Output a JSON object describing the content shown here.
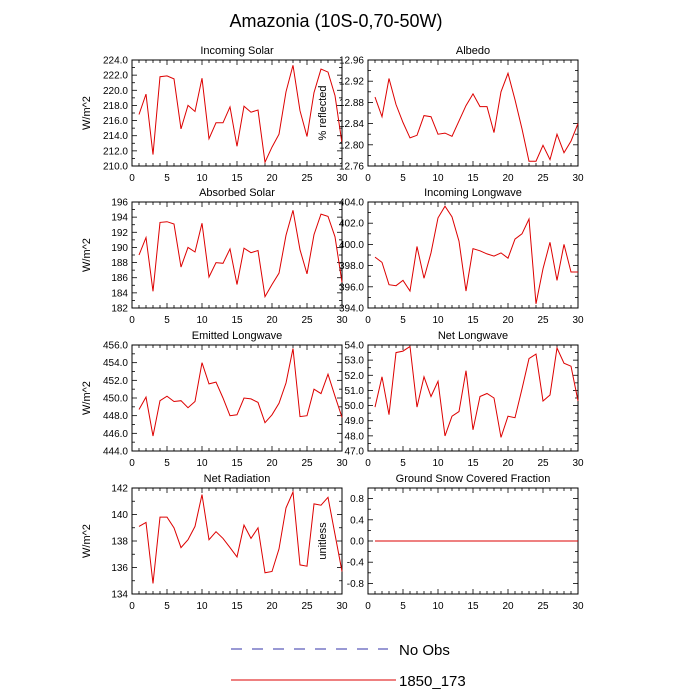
{
  "figure": {
    "title": "Amazonia (10S-0,70-50W)"
  },
  "legend": {
    "entries": [
      {
        "label": "No Obs",
        "color": "#3333aa",
        "dashed": true
      },
      {
        "label": "1850_173",
        "color": "#dd0000",
        "dashed": false
      }
    ]
  },
  "chart_data": [
    {
      "type": "line",
      "title": "Incoming Solar",
      "ylabel": "W/m^2",
      "xlim": [
        0,
        30
      ],
      "ylim": [
        210,
        224
      ],
      "xticks": [
        0,
        5,
        10,
        15,
        20,
        25,
        30
      ],
      "yticks": [
        210,
        212,
        214,
        216,
        218,
        220,
        222,
        224
      ],
      "ytick_labels": [
        "210.0",
        "212.0",
        "214.0",
        "216.0",
        "218.0",
        "220.0",
        "222.0",
        "224.0"
      ],
      "series": [
        {
          "color": "#dd0000",
          "x": [
            1,
            2,
            3,
            4,
            5,
            6,
            7,
            8,
            9,
            10,
            11,
            12,
            13,
            14,
            15,
            16,
            17,
            18,
            19,
            20,
            21,
            22,
            23,
            24,
            25,
            26,
            27,
            28,
            29,
            30
          ],
          "y": [
            216.8,
            219.5,
            211.5,
            221.8,
            221.9,
            221.5,
            214.9,
            218.0,
            217.2,
            221.6,
            213.6,
            215.7,
            215.7,
            217.8,
            212.6,
            217.9,
            217.1,
            217.4,
            210.5,
            212.5,
            214.2,
            219.8,
            223.3,
            217.3,
            213.9,
            219.7,
            222.8,
            222.4,
            219.3,
            213.0
          ]
        }
      ]
    },
    {
      "type": "line",
      "title": "Albedo",
      "ylabel": "% reflected",
      "xlim": [
        0,
        30
      ],
      "ylim": [
        12.76,
        12.96
      ],
      "xticks": [
        0,
        5,
        10,
        15,
        20,
        25,
        30
      ],
      "yticks": [
        12.76,
        12.8,
        12.84,
        12.88,
        12.92,
        12.96
      ],
      "ytick_labels": [
        "12.76",
        "12.80",
        "12.84",
        "12.88",
        "12.92",
        "12.96"
      ],
      "series": [
        {
          "color": "#dd0000",
          "x": [
            1,
            2,
            3,
            4,
            5,
            6,
            7,
            8,
            9,
            10,
            11,
            12,
            13,
            14,
            15,
            16,
            17,
            18,
            19,
            20,
            21,
            22,
            23,
            24,
            25,
            26,
            27,
            28,
            29,
            30
          ],
          "y": [
            12.89,
            12.853,
            12.925,
            12.876,
            12.842,
            12.813,
            12.818,
            12.855,
            12.853,
            12.82,
            12.822,
            12.816,
            12.845,
            12.874,
            12.896,
            12.872,
            12.872,
            12.823,
            12.9,
            12.935,
            12.885,
            12.83,
            12.769,
            12.769,
            12.799,
            12.772,
            12.82,
            12.785,
            12.807,
            12.84
          ]
        }
      ]
    },
    {
      "type": "line",
      "title": "Absorbed Solar",
      "ylabel": "W/m^2",
      "xlim": [
        0,
        30
      ],
      "ylim": [
        182,
        196
      ],
      "xticks": [
        0,
        5,
        10,
        15,
        20,
        25,
        30
      ],
      "yticks": [
        182,
        184,
        186,
        188,
        190,
        192,
        194,
        196
      ],
      "ytick_labels": [
        "182",
        "184",
        "186",
        "188",
        "190",
        "192",
        "194",
        "196"
      ],
      "series": [
        {
          "color": "#dd0000",
          "x": [
            1,
            2,
            3,
            4,
            5,
            6,
            7,
            8,
            9,
            10,
            11,
            12,
            13,
            14,
            15,
            16,
            17,
            18,
            19,
            20,
            21,
            22,
            23,
            24,
            25,
            26,
            27,
            28,
            29,
            30
          ],
          "y": [
            189.0,
            191.3,
            184.2,
            193.3,
            193.4,
            193.1,
            187.4,
            190.0,
            189.4,
            193.2,
            186.1,
            188.0,
            187.9,
            189.8,
            185.1,
            189.9,
            189.3,
            189.6,
            183.5,
            185.1,
            186.6,
            191.6,
            194.9,
            189.7,
            186.5,
            191.7,
            194.4,
            194.1,
            191.4,
            185.4
          ]
        }
      ]
    },
    {
      "type": "line",
      "title": "Incoming Longwave",
      "ylabel": "",
      "xlim": [
        0,
        30
      ],
      "ylim": [
        394,
        404
      ],
      "xticks": [
        0,
        5,
        10,
        15,
        20,
        25,
        30
      ],
      "yticks": [
        394,
        396,
        398,
        400,
        402,
        404
      ],
      "ytick_labels": [
        "394.0",
        "396.0",
        "398.0",
        "400.0",
        "402.0",
        "404.0"
      ],
      "series": [
        {
          "color": "#dd0000",
          "x": [
            1,
            2,
            3,
            4,
            5,
            6,
            7,
            8,
            9,
            10,
            11,
            12,
            13,
            14,
            15,
            16,
            17,
            18,
            19,
            20,
            21,
            22,
            23,
            24,
            25,
            26,
            27,
            28,
            29,
            30
          ],
          "y": [
            398.8,
            398.3,
            396.2,
            396.1,
            396.6,
            395.6,
            399.8,
            396.8,
            399.2,
            402.5,
            403.6,
            402.6,
            400.3,
            395.6,
            399.6,
            399.4,
            399.1,
            398.9,
            399.2,
            398.7,
            400.5,
            401.0,
            402.4,
            394.4,
            397.7,
            400.2,
            396.6,
            400.0,
            397.4,
            397.4
          ]
        }
      ]
    },
    {
      "type": "line",
      "title": "Emitted Longwave",
      "ylabel": "W/m^2",
      "xlim": [
        0,
        30
      ],
      "ylim": [
        444,
        456
      ],
      "xticks": [
        0,
        5,
        10,
        15,
        20,
        25,
        30
      ],
      "yticks": [
        444,
        446,
        448,
        450,
        452,
        454,
        456
      ],
      "ytick_labels": [
        "444.0",
        "446.0",
        "448.0",
        "450.0",
        "452.0",
        "454.0",
        "456.0"
      ],
      "series": [
        {
          "color": "#dd0000",
          "x": [
            1,
            2,
            3,
            4,
            5,
            6,
            7,
            8,
            9,
            10,
            11,
            12,
            13,
            14,
            15,
            16,
            17,
            18,
            19,
            20,
            21,
            22,
            23,
            24,
            25,
            26,
            27,
            28,
            29,
            30
          ],
          "y": [
            448.7,
            450.1,
            445.7,
            449.7,
            450.2,
            449.6,
            449.7,
            448.9,
            449.6,
            454.0,
            451.6,
            451.8,
            450.0,
            448.0,
            448.1,
            450.0,
            449.9,
            449.5,
            447.2,
            448.1,
            449.4,
            451.7,
            455.6,
            447.9,
            448.0,
            451.0,
            450.5,
            452.7,
            450.2,
            447.8
          ]
        }
      ]
    },
    {
      "type": "line",
      "title": "Net Longwave",
      "ylabel": "",
      "xlim": [
        0,
        30
      ],
      "ylim": [
        47,
        54
      ],
      "xticks": [
        0,
        5,
        10,
        15,
        20,
        25,
        30
      ],
      "yticks": [
        47,
        48,
        49,
        50,
        51,
        52,
        53,
        54
      ],
      "ytick_labels": [
        "47.0",
        "48.0",
        "49.0",
        "50.0",
        "51.0",
        "52.0",
        "53.0",
        "54.0"
      ],
      "series": [
        {
          "color": "#dd0000",
          "x": [
            1,
            2,
            3,
            4,
            5,
            6,
            7,
            8,
            9,
            10,
            11,
            12,
            13,
            14,
            15,
            16,
            17,
            18,
            19,
            20,
            21,
            22,
            23,
            24,
            25,
            26,
            27,
            28,
            29,
            30
          ],
          "y": [
            49.9,
            51.9,
            49.4,
            53.5,
            53.6,
            53.9,
            49.9,
            51.9,
            50.6,
            51.6,
            48.0,
            49.3,
            49.6,
            52.3,
            48.4,
            50.6,
            50.8,
            50.5,
            47.9,
            49.3,
            49.2,
            51.1,
            53.1,
            53.4,
            50.3,
            50.7,
            53.8,
            52.8,
            52.6,
            50.3
          ]
        }
      ]
    },
    {
      "type": "line",
      "title": "Net Radiation",
      "ylabel": "W/m^2",
      "xlim": [
        0,
        30
      ],
      "ylim": [
        134,
        142
      ],
      "xticks": [
        0,
        5,
        10,
        15,
        20,
        25,
        30
      ],
      "yticks": [
        134,
        136,
        138,
        140,
        142
      ],
      "ytick_labels": [
        "134",
        "136",
        "138",
        "140",
        "142"
      ],
      "series": [
        {
          "color": "#dd0000",
          "x": [
            1,
            2,
            3,
            4,
            5,
            6,
            7,
            8,
            9,
            10,
            11,
            12,
            13,
            14,
            15,
            16,
            17,
            18,
            19,
            20,
            21,
            22,
            23,
            24,
            25,
            26,
            27,
            28,
            29,
            30
          ],
          "y": [
            139.1,
            139.4,
            134.8,
            139.8,
            139.8,
            139.0,
            137.5,
            138.1,
            139.1,
            141.5,
            138.1,
            138.7,
            138.2,
            137.5,
            136.8,
            139.2,
            138.2,
            139.0,
            135.6,
            135.7,
            137.4,
            140.5,
            141.7,
            136.2,
            136.1,
            140.8,
            140.7,
            141.3,
            138.5,
            135.7
          ]
        }
      ]
    },
    {
      "type": "line",
      "title": "Ground Snow Covered Fraction",
      "ylabel": "unitless",
      "xlim": [
        0,
        30
      ],
      "ylim": [
        -1,
        1
      ],
      "xticks": [
        0,
        5,
        10,
        15,
        20,
        25,
        30
      ],
      "yticks": [
        -0.8,
        -0.4,
        0.0,
        0.4,
        0.8
      ],
      "ytick_labels": [
        "-0.8",
        "-0.4",
        "0.0",
        "0.4",
        "0.8"
      ],
      "series": [
        {
          "color": "#dd0000",
          "x": [
            1,
            2,
            3,
            4,
            5,
            6,
            7,
            8,
            9,
            10,
            11,
            12,
            13,
            14,
            15,
            16,
            17,
            18,
            19,
            20,
            21,
            22,
            23,
            24,
            25,
            26,
            27,
            28,
            29,
            30
          ],
          "y": [
            0,
            0,
            0,
            0,
            0,
            0,
            0,
            0,
            0,
            0,
            0,
            0,
            0,
            0,
            0,
            0,
            0,
            0,
            0,
            0,
            0,
            0,
            0,
            0,
            0,
            0,
            0,
            0,
            0,
            0
          ]
        }
      ]
    }
  ]
}
